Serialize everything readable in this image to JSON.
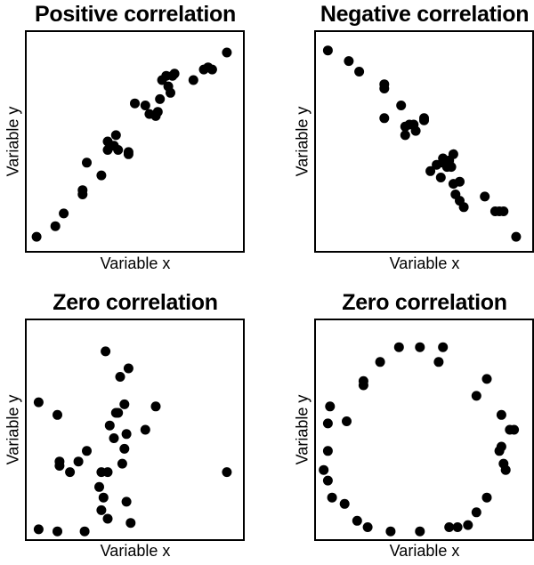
{
  "chart_data": [
    {
      "type": "scatter",
      "title": "Positive correlation",
      "xlabel": "Variable x",
      "ylabel": "Variable y",
      "xlim": [
        0,
        100
      ],
      "ylim": [
        0,
        100
      ],
      "points": [
        [
          3,
          5
        ],
        [
          12,
          10
        ],
        [
          16,
          16
        ],
        [
          25,
          25
        ],
        [
          25,
          27
        ],
        [
          27,
          40
        ],
        [
          34,
          34
        ],
        [
          37,
          46
        ],
        [
          37,
          50
        ],
        [
          40,
          48
        ],
        [
          41,
          53
        ],
        [
          42,
          46
        ],
        [
          47,
          44
        ],
        [
          47,
          45
        ],
        [
          50,
          68
        ],
        [
          55,
          67
        ],
        [
          57,
          63
        ],
        [
          60,
          62
        ],
        [
          61,
          64
        ],
        [
          62,
          70
        ],
        [
          63,
          79
        ],
        [
          65,
          81
        ],
        [
          66,
          76
        ],
        [
          67,
          73
        ],
        [
          68,
          81
        ],
        [
          69,
          82
        ],
        [
          78,
          79
        ],
        [
          83,
          84
        ],
        [
          85,
          85
        ],
        [
          87,
          84
        ],
        [
          94,
          92
        ]
      ]
    },
    {
      "type": "scatter",
      "title": "Negative correlation",
      "xlabel": "Variable x",
      "ylabel": "Variable y",
      "xlim": [
        0,
        100
      ],
      "ylim": [
        0,
        100
      ],
      "points": [
        [
          4,
          93
        ],
        [
          14,
          88
        ],
        [
          19,
          83
        ],
        [
          31,
          77
        ],
        [
          31,
          75
        ],
        [
          31,
          61
        ],
        [
          39,
          67
        ],
        [
          41,
          57
        ],
        [
          41,
          53
        ],
        [
          43,
          58
        ],
        [
          45,
          58
        ],
        [
          46,
          55
        ],
        [
          50,
          60
        ],
        [
          50,
          61
        ],
        [
          53,
          36
        ],
        [
          56,
          39
        ],
        [
          58,
          33
        ],
        [
          59,
          40
        ],
        [
          59,
          42
        ],
        [
          61,
          38
        ],
        [
          62,
          41
        ],
        [
          63,
          38
        ],
        [
          64,
          44
        ],
        [
          64,
          30
        ],
        [
          65,
          25
        ],
        [
          67,
          22
        ],
        [
          67,
          31
        ],
        [
          69,
          19
        ],
        [
          79,
          24
        ],
        [
          84,
          17
        ],
        [
          86,
          17
        ],
        [
          88,
          17
        ],
        [
          94,
          5
        ]
      ]
    },
    {
      "type": "scatter",
      "title": "Zero correlation",
      "xlabel": "Variable x",
      "ylabel": "Variable y",
      "xlim": [
        0,
        100
      ],
      "ylim": [
        0,
        100
      ],
      "points": [
        [
          4,
          63
        ],
        [
          4,
          3
        ],
        [
          13,
          57
        ],
        [
          13,
          2
        ],
        [
          14,
          35
        ],
        [
          14,
          33
        ],
        [
          19,
          30
        ],
        [
          23,
          35
        ],
        [
          26,
          2
        ],
        [
          27,
          40
        ],
        [
          33,
          23
        ],
        [
          34,
          30
        ],
        [
          35,
          18
        ],
        [
          34,
          12
        ],
        [
          36,
          87
        ],
        [
          37,
          8
        ],
        [
          37,
          30
        ],
        [
          38,
          52
        ],
        [
          40,
          46
        ],
        [
          41,
          58
        ],
        [
          42,
          58
        ],
        [
          43,
          75
        ],
        [
          44,
          34
        ],
        [
          45,
          62
        ],
        [
          45,
          41
        ],
        [
          46,
          16
        ],
        [
          46,
          48
        ],
        [
          47,
          79
        ],
        [
          48,
          6
        ],
        [
          55,
          50
        ],
        [
          60,
          61
        ],
        [
          94,
          30
        ]
      ]
    },
    {
      "type": "scatter",
      "title": "Zero correlation",
      "xlabel": "Variable x",
      "ylabel": "Variable y",
      "xlim": [
        0,
        100
      ],
      "ylim": [
        0,
        100
      ],
      "points": [
        [
          38,
          89
        ],
        [
          48,
          89
        ],
        [
          59,
          89
        ],
        [
          13,
          54
        ],
        [
          5,
          61
        ],
        [
          21,
          71
        ],
        [
          21,
          73
        ],
        [
          29,
          82
        ],
        [
          57,
          82
        ],
        [
          75,
          66
        ],
        [
          80,
          74
        ],
        [
          87,
          57
        ],
        [
          91,
          50
        ],
        [
          93,
          50
        ],
        [
          88,
          34
        ],
        [
          89,
          31
        ],
        [
          80,
          18
        ],
        [
          75,
          11
        ],
        [
          71,
          5
        ],
        [
          62,
          4
        ],
        [
          48,
          2
        ],
        [
          34,
          2
        ],
        [
          23,
          4
        ],
        [
          18,
          7
        ],
        [
          12,
          15
        ],
        [
          6,
          18
        ],
        [
          4,
          26
        ],
        [
          2,
          31
        ],
        [
          4,
          40
        ],
        [
          4,
          53
        ],
        [
          66,
          4
        ],
        [
          86,
          40
        ],
        [
          87,
          42
        ]
      ]
    }
  ]
}
